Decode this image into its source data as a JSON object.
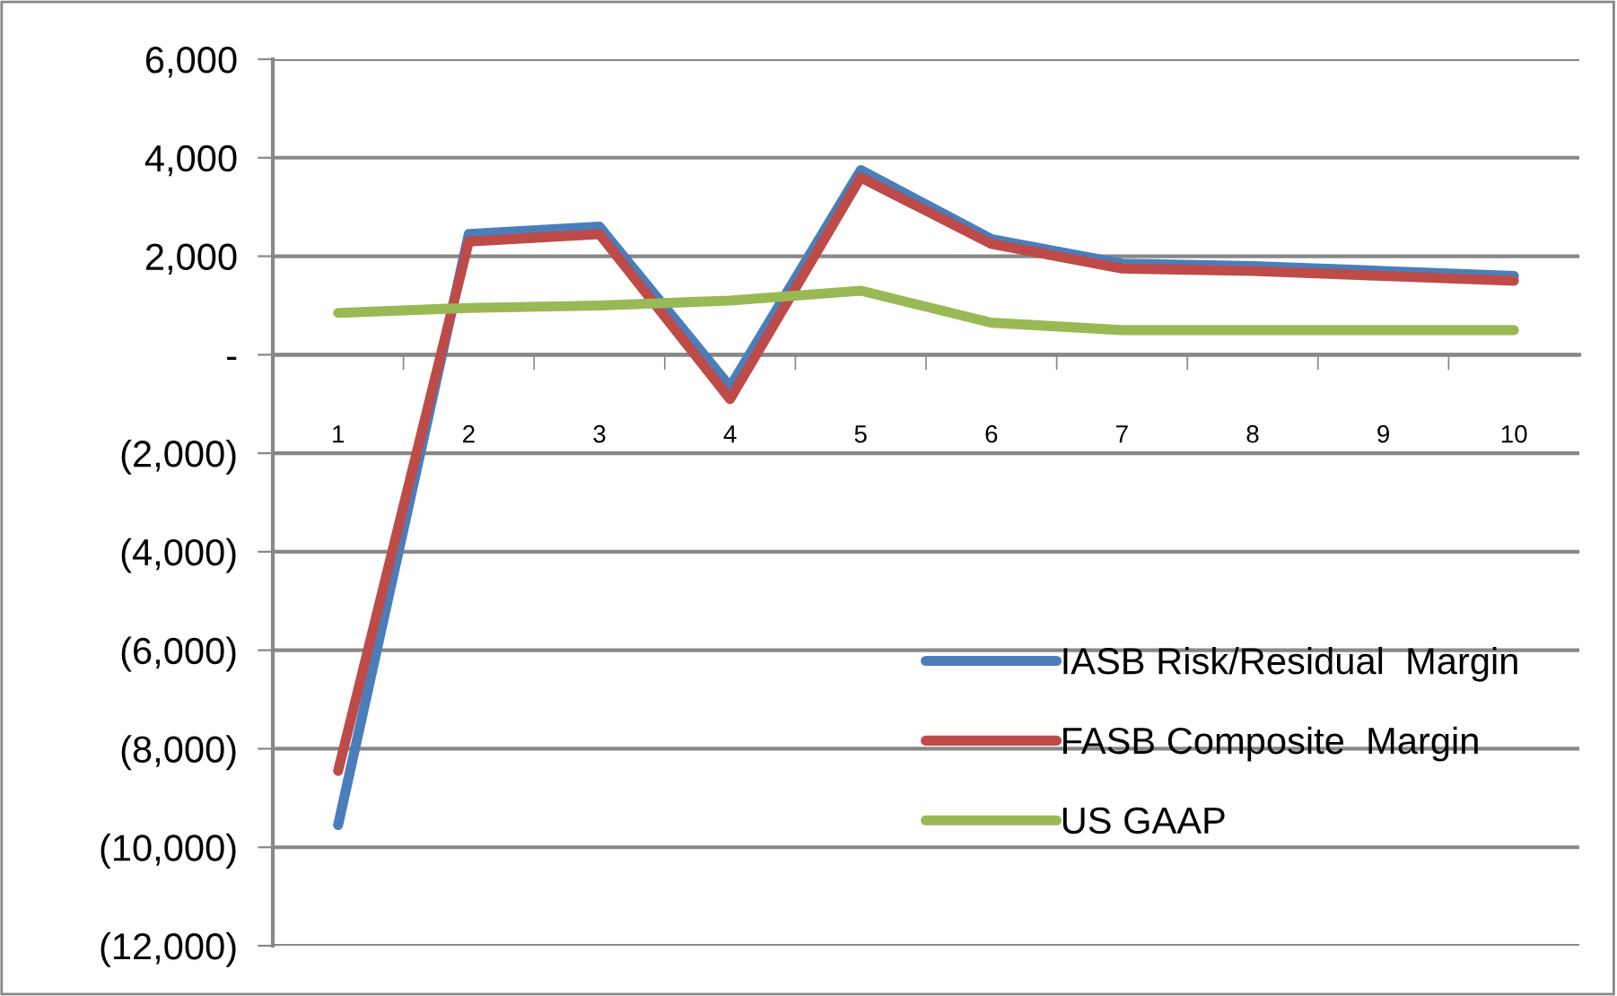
{
  "chart_data": {
    "type": "line",
    "categories": [
      "1",
      "2",
      "3",
      "4",
      "5",
      "6",
      "7",
      "8",
      "9",
      "10"
    ],
    "series": [
      {
        "name": "IASB Risk/Residual  Margin",
        "color": "#4a7ebb",
        "values": [
          -9550,
          2450,
          2600,
          -650,
          3750,
          2350,
          1850,
          1800,
          1700,
          1600
        ]
      },
      {
        "name": "FASB Composite  Margin",
        "color": "#be4b48",
        "values": [
          -8450,
          2300,
          2450,
          -900,
          3600,
          2250,
          1750,
          1700,
          1600,
          1500
        ]
      },
      {
        "name": "US GAAP",
        "color": "#98b954",
        "values": [
          850,
          950,
          1000,
          1100,
          1300,
          650,
          500,
          500,
          500,
          500
        ]
      }
    ],
    "ylim": [
      -12000,
      6000
    ],
    "yticks": [
      {
        "value": -12000,
        "label": "(12,000)"
      },
      {
        "value": -10000,
        "label": "(10,000)"
      },
      {
        "value": -8000,
        "label": "(8,000)"
      },
      {
        "value": -6000,
        "label": "(6,000)"
      },
      {
        "value": -4000,
        "label": "(4,000)"
      },
      {
        "value": -2000,
        "label": "(2,000)"
      },
      {
        "value": 0,
        "label": "-"
      },
      {
        "value": 2000,
        "label": "2,000"
      },
      {
        "value": 4000,
        "label": "4,000"
      },
      {
        "value": 6000,
        "label": "6,000"
      }
    ],
    "grid": "y",
    "legend": "lower right",
    "marker": "none",
    "line_style": "solid"
  }
}
